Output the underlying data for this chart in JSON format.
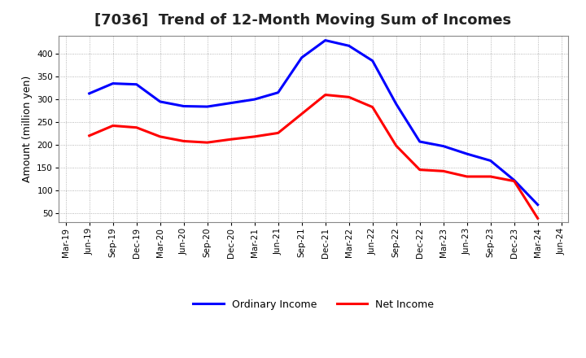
{
  "title": "[7036]  Trend of 12-Month Moving Sum of Incomes",
  "ylabel": "Amount (million yen)",
  "ordinary_income": {
    "dates": [
      "Mar-19",
      "Jun-19",
      "Sep-19",
      "Dec-19",
      "Mar-20",
      "Jun-20",
      "Sep-20",
      "Dec-20",
      "Mar-21",
      "Jun-21",
      "Sep-21",
      "Dec-21",
      "Mar-22",
      "Jun-22",
      "Sep-22",
      "Dec-22",
      "Mar-23",
      "Jun-23",
      "Sep-23",
      "Dec-23",
      "Mar-24",
      "Jun-24"
    ],
    "values": [
      null,
      313,
      335,
      333,
      295,
      285,
      284,
      292,
      300,
      315,
      392,
      430,
      418,
      385,
      290,
      207,
      197,
      180,
      165,
      122,
      68,
      null
    ]
  },
  "net_income": {
    "dates": [
      "Mar-19",
      "Jun-19",
      "Sep-19",
      "Dec-19",
      "Mar-20",
      "Jun-20",
      "Sep-20",
      "Dec-20",
      "Mar-21",
      "Jun-21",
      "Sep-21",
      "Dec-21",
      "Mar-22",
      "Jun-22",
      "Sep-22",
      "Dec-22",
      "Mar-23",
      "Jun-23",
      "Sep-23",
      "Dec-23",
      "Mar-24",
      "Jun-24"
    ],
    "values": [
      null,
      220,
      242,
      238,
      218,
      208,
      205,
      212,
      218,
      226,
      268,
      310,
      305,
      283,
      198,
      145,
      142,
      130,
      130,
      120,
      38,
      null
    ]
  },
  "ordinary_color": "#0000ff",
  "net_color": "#ff0000",
  "background_color": "#ffffff",
  "plot_bg_color": "#e8e8e8",
  "grid_color": "#999999",
  "ylim": [
    30,
    440
  ],
  "yticks": [
    50,
    100,
    150,
    200,
    250,
    300,
    350,
    400
  ],
  "title_fontsize": 13,
  "ylabel_fontsize": 9,
  "tick_fontsize": 7.5,
  "legend_fontsize": 9,
  "linewidth": 2.2
}
